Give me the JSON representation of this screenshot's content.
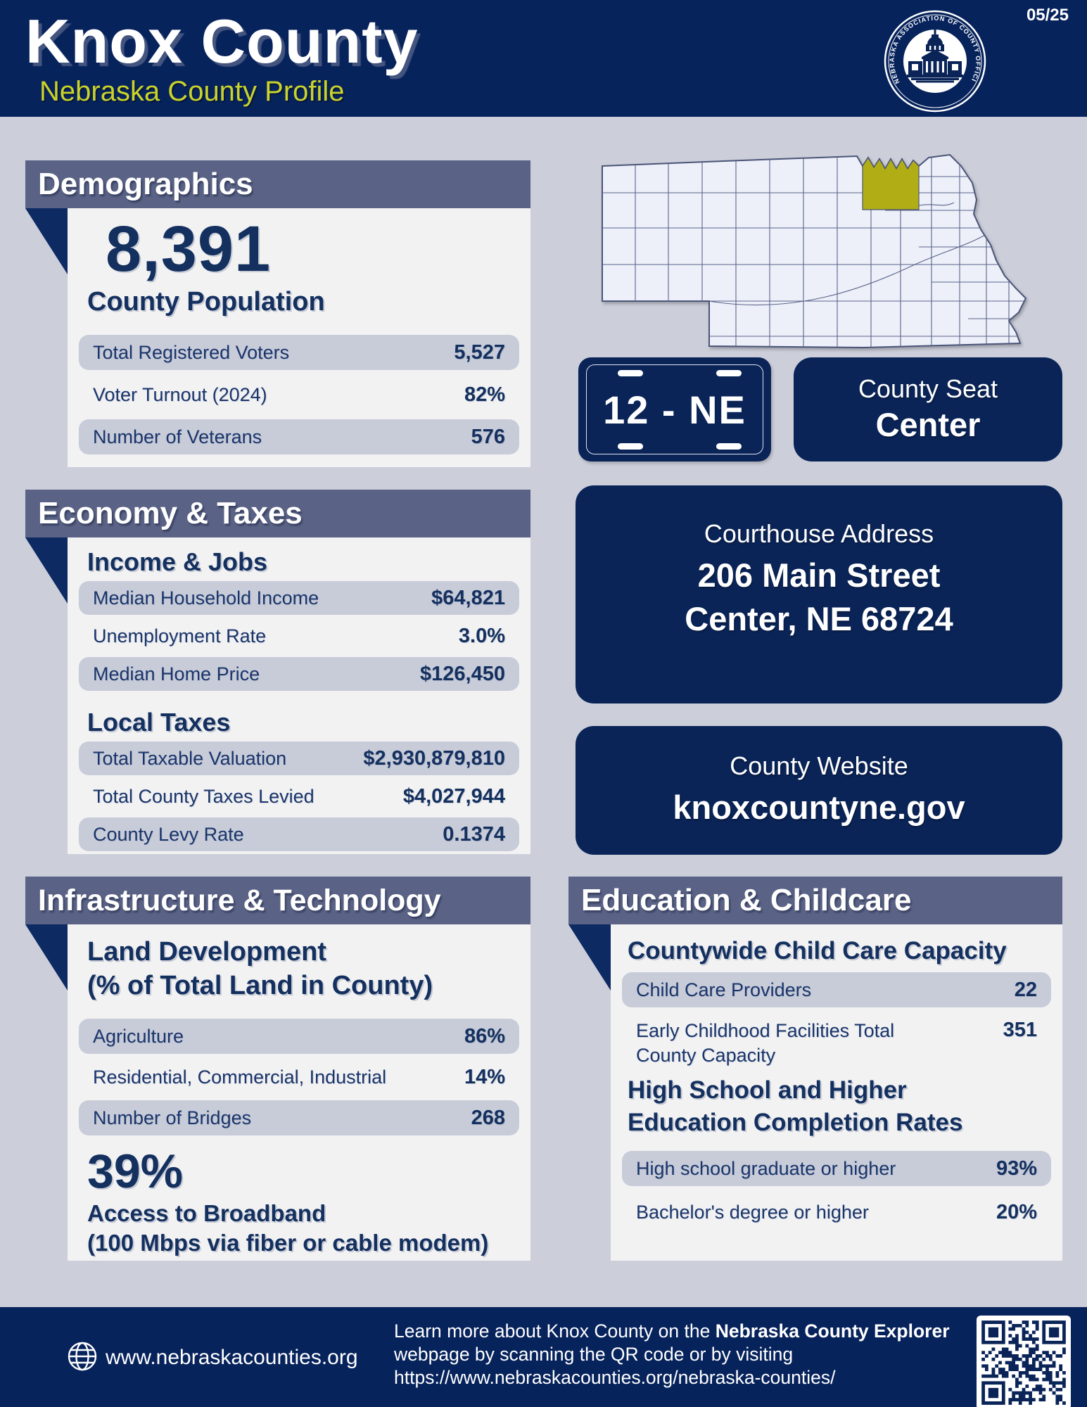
{
  "header": {
    "title": "Knox County",
    "subtitle": "Nebraska County Profile",
    "date": "05/25",
    "seal_text": "NEBRASKA ASSOCIATION OF COUNTY OFFICIALS"
  },
  "colors": {
    "navy": "#07235c",
    "card_navy": "#0a2458",
    "section_band": "#5a6285",
    "page_background": "#cccfda",
    "panel_background": "#f2f2f3",
    "pill_background": "#c8ccd9",
    "text_navy": "#14305f",
    "accent_yellow": "#c9d32b",
    "county_highlight": "#b1ae15"
  },
  "map": {
    "name": "Nebraska county map",
    "highlighted_county": "Knox"
  },
  "plate": {
    "number": "12 - NE"
  },
  "county_seat": {
    "label": "County Seat",
    "value": "Center"
  },
  "courthouse": {
    "label": "Courthouse Address",
    "line1": "206 Main Street",
    "line2": "Center, NE 68724"
  },
  "website": {
    "label": "County Website",
    "value": "knoxcountyne.gov"
  },
  "demographics": {
    "section_title": "Demographics",
    "population_value": "8,391",
    "population_label": "County Population",
    "rows": [
      {
        "label": "Total Registered Voters",
        "value": "5,527"
      },
      {
        "label": "Voter Turnout (2024)",
        "value": "82%"
      },
      {
        "label": "Number of Veterans",
        "value": "576"
      }
    ]
  },
  "economy": {
    "section_title": "Economy & Taxes",
    "income_jobs_title": "Income & Jobs",
    "income_rows": [
      {
        "label": "Median Household Income",
        "value": "$64,821"
      },
      {
        "label": "Unemployment Rate",
        "value": "3.0%"
      },
      {
        "label": "Median Home Price",
        "value": "$126,450"
      }
    ],
    "local_taxes_title": "Local Taxes",
    "tax_rows": [
      {
        "label": "Total Taxable Valuation",
        "value": "$2,930,879,810"
      },
      {
        "label": "Total County Taxes Levied",
        "value": "$4,027,944"
      },
      {
        "label": "County Levy Rate",
        "value": "0.1374"
      }
    ]
  },
  "infrastructure": {
    "section_title": "Infrastructure & Technology",
    "land_title_line1": "Land Development",
    "land_title_line2": "(% of Total Land in County)",
    "rows": [
      {
        "label": "Agriculture",
        "value": "86%"
      },
      {
        "label": "Residential, Commercial, Industrial",
        "value": "14%"
      },
      {
        "label": "Number of Bridges",
        "value": "268"
      }
    ],
    "broadband_value": "39%",
    "broadband_label_line1": "Access to Broadband",
    "broadband_label_line2": "(100 Mbps via fiber or cable modem)"
  },
  "education": {
    "section_title": "Education & Childcare",
    "childcare_title": "Countywide Child Care Capacity",
    "childcare_rows": [
      {
        "label": "Child Care Providers",
        "value": "22"
      },
      {
        "label": "Early Childhood Facilities Total County Capacity",
        "value": "351"
      }
    ],
    "completion_title_line1": "High School and Higher",
    "completion_title_line2": "Education Completion Rates",
    "completion_rows": [
      {
        "label": "High school graduate or higher",
        "value": "93%"
      },
      {
        "label": "Bachelor's degree or higher",
        "value": "20%"
      }
    ]
  },
  "footer": {
    "site": "www.nebraskacounties.org",
    "learn_prefix": "Learn more about Knox County on the ",
    "learn_bold": "Nebraska County Explorer",
    "learn_suffix": " webpage by scanning the QR code or by visiting",
    "learn_url": "https://www.nebraskacounties.org/nebraska-counties/"
  }
}
